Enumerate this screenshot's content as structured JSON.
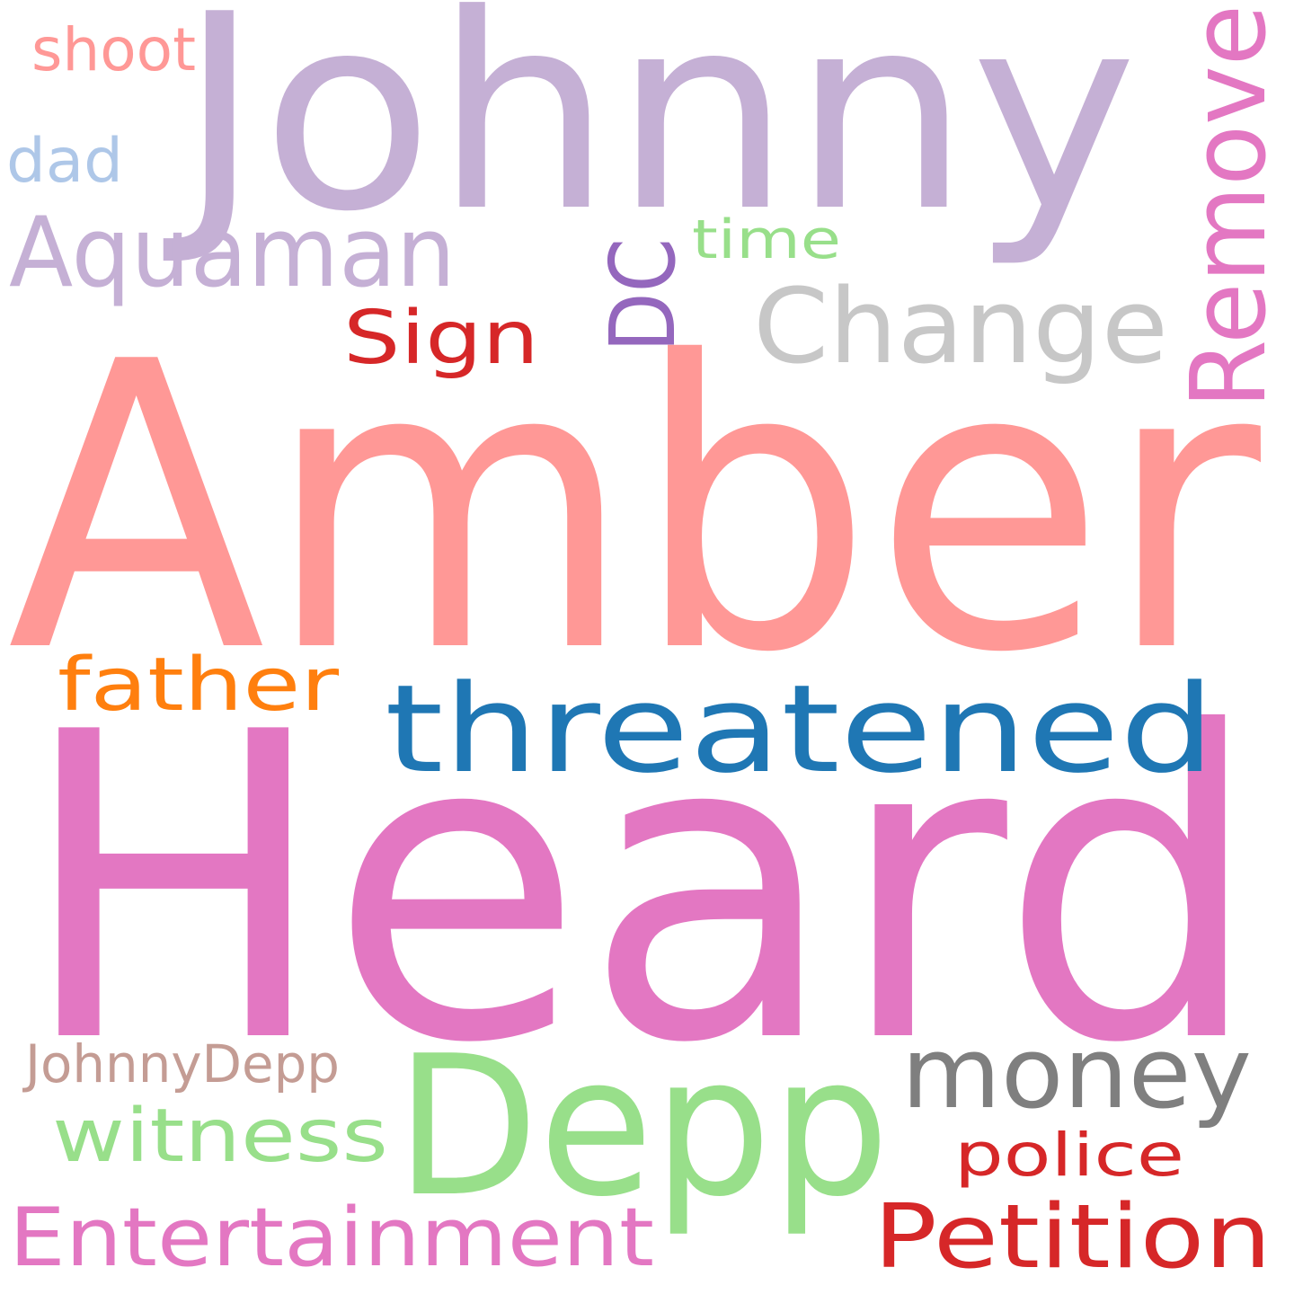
{
  "words": [
    {
      "id": "heard",
      "text": "Heard",
      "color": "#e377c2"
    },
    {
      "id": "amber",
      "text": "Amber",
      "color": "#ff9896"
    },
    {
      "id": "johnny",
      "text": "Johnny",
      "color": "#c5b0d5"
    },
    {
      "id": "threatened",
      "text": "threatened",
      "color": "#1f77b4"
    },
    {
      "id": "depp",
      "text": "Depp",
      "color": "#98df8a"
    },
    {
      "id": "change",
      "text": "Change",
      "color": "#c7c7c7"
    },
    {
      "id": "remove",
      "text": "Remove",
      "color": "#e377c2"
    },
    {
      "id": "aquaman",
      "text": "Aquaman",
      "color": "#c5b0d5"
    },
    {
      "id": "money",
      "text": "money",
      "color": "#7f7f7f"
    },
    {
      "id": "petition",
      "text": "Petition",
      "color": "#d62728"
    },
    {
      "id": "entertainment",
      "text": "Entertainment",
      "color": "#e377c2"
    },
    {
      "id": "dc",
      "text": "DC",
      "color": "#9467bd"
    },
    {
      "id": "witness",
      "text": "witness",
      "color": "#98df8a"
    },
    {
      "id": "father",
      "text": "father",
      "color": "#ff7f0e"
    },
    {
      "id": "sign",
      "text": "Sign",
      "color": "#d62728"
    },
    {
      "id": "police",
      "text": "police",
      "color": "#d62728"
    },
    {
      "id": "johnnydepp",
      "text": "JohnnyDepp",
      "color": "#c49c94"
    },
    {
      "id": "shoot",
      "text": "shoot",
      "color": "#ff9896"
    },
    {
      "id": "dad",
      "text": "dad",
      "color": "#aec7e8"
    },
    {
      "id": "time",
      "text": "time",
      "color": "#98df8a"
    }
  ]
}
